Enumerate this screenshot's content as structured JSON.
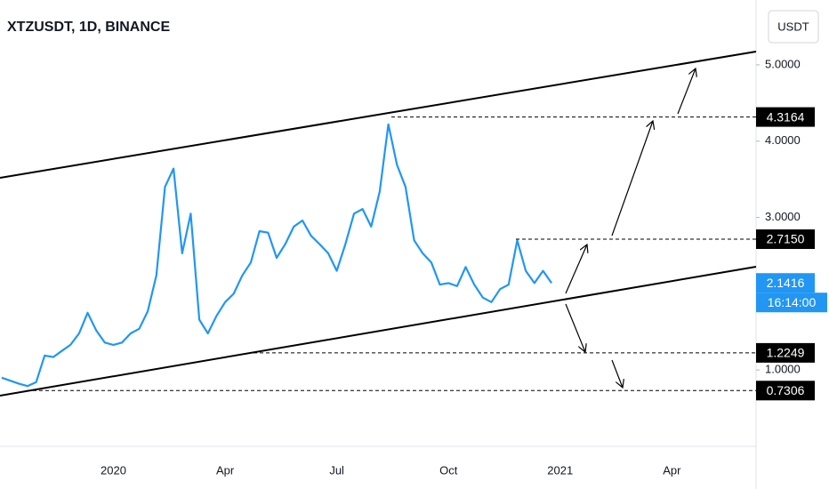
{
  "chart_data": {
    "type": "line",
    "title": "XTZUSDT, 1D, BINANCE",
    "currency": "USDT",
    "color": "#2196f3",
    "categories": [
      null,
      null,
      null,
      null,
      null,
      null,
      null,
      null,
      null,
      null,
      null,
      null,
      null,
      "2020",
      null,
      null,
      null,
      null,
      null,
      null,
      null,
      null,
      null,
      null,
      null,
      null,
      "Apr",
      null,
      null,
      null,
      null,
      null,
      null,
      null,
      null,
      null,
      null,
      null,
      null,
      "Jul",
      null,
      null,
      null,
      null,
      null,
      null,
      null,
      null,
      null,
      null,
      null,
      null,
      "Oct",
      null,
      null,
      null,
      null,
      null,
      null,
      null,
      null,
      null,
      null,
      null,
      null,
      "2021",
      null,
      null,
      null,
      null,
      null,
      null,
      null,
      null,
      null,
      null,
      null,
      null,
      "Apr",
      null,
      null,
      null,
      null,
      null,
      null,
      null,
      null,
      null
    ],
    "values": [
      0.9,
      0.86,
      0.82,
      0.79,
      0.84,
      1.19,
      1.17,
      1.25,
      1.33,
      1.48,
      1.75,
      1.52,
      1.36,
      1.33,
      1.36,
      1.48,
      1.54,
      1.77,
      2.24,
      3.4,
      3.64,
      2.53,
      3.05,
      1.66,
      1.48,
      1.71,
      1.89,
      2.0,
      2.24,
      2.41,
      2.82,
      2.8,
      2.47,
      2.65,
      2.88,
      2.96,
      2.76,
      2.65,
      2.53,
      2.3,
      2.65,
      3.05,
      3.11,
      2.88,
      3.34,
      4.22,
      3.69,
      3.4,
      2.7,
      2.53,
      2.41,
      2.12,
      2.14,
      2.1,
      2.35,
      2.12,
      1.95,
      1.89,
      2.06,
      2.12,
      2.7,
      2.3,
      2.14,
      2.3,
      2.14,
      null,
      null,
      null,
      null,
      null,
      null,
      null,
      null,
      null,
      null,
      null,
      null,
      null,
      null,
      null,
      null,
      null,
      null,
      null,
      null,
      null,
      null,
      null
    ],
    "ylim": [
      0,
      5.85
    ],
    "yticks": [
      {
        "value": 1,
        "label": "1.0000"
      },
      {
        "value": 3,
        "label": "3.0000"
      },
      {
        "value": 4,
        "label": "4.0000"
      },
      {
        "value": 5,
        "label": "5.0000"
      }
    ],
    "levels": [
      {
        "value": 4.3164,
        "label": "4.3164"
      },
      {
        "value": 2.715,
        "label": "2.7150"
      },
      {
        "value": 1.2249,
        "label": "1.2249"
      },
      {
        "value": 0.7306,
        "label": "0.7306"
      }
    ],
    "last_price": 2.1416,
    "countdown": "16:14:00"
  }
}
